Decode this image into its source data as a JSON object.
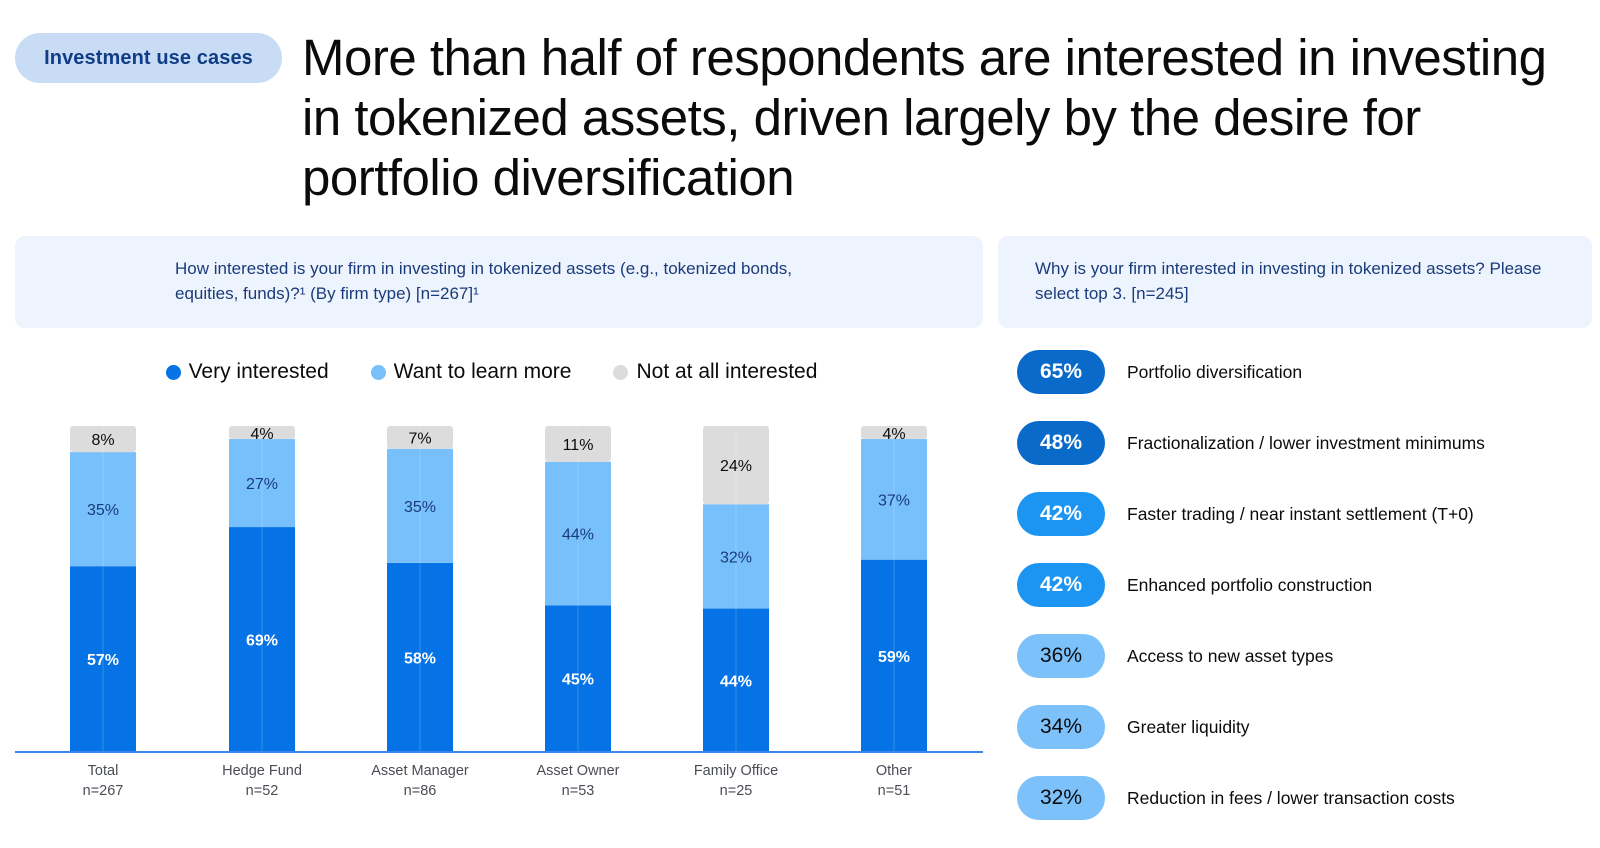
{
  "tag": "Investment use cases",
  "headline": "More than half of respondents are interested in investing in tokenized assets, driven largely by the desire for portfolio diversification",
  "left_panel": {
    "question": "How interested is your firm in investing in tokenized assets (e.g., tokenized bonds, equities, funds)?¹ (By firm type) [n=267]¹"
  },
  "right_panel": {
    "question": "Why is your firm interested in investing in tokenized assets? Please select top 3. [n=245]",
    "reasons": [
      {
        "value": "65%",
        "label": "Portfolio diversification",
        "pill_color": "#0a6ac9",
        "text_color": "#ffffff"
      },
      {
        "value": "48%",
        "label": "Fractionalization / lower investment minimums",
        "pill_color": "#0a6ac9",
        "text_color": "#ffffff"
      },
      {
        "value": "42%",
        "label": "Faster trading / near instant settlement (T+0)",
        "pill_color": "#1c95f2",
        "text_color": "#ffffff"
      },
      {
        "value": "42%",
        "label": "Enhanced portfolio construction",
        "pill_color": "#1c95f2",
        "text_color": "#ffffff"
      },
      {
        "value": "36%",
        "label": "Access to new asset types",
        "pill_color": "#7cc1fa",
        "text_color": "#0a0b0d"
      },
      {
        "value": "34%",
        "label": "Greater liquidity",
        "pill_color": "#7cc1fa",
        "text_color": "#0a0b0d"
      },
      {
        "value": "32%",
        "label": "Reduction in fees / lower transaction costs",
        "pill_color": "#7cc1fa",
        "text_color": "#0a0b0d"
      }
    ]
  },
  "colors": {
    "very_interested": "#0573e5",
    "want_to_learn": "#78c0fb",
    "not_interested": "#dcdcdc",
    "axis": "#3d86f0"
  },
  "chart_data": {
    "type": "bar",
    "stacked": true,
    "title": "How interested is your firm in investing in tokenized assets (e.g., tokenized bonds, equities, funds)?¹ (By firm type) [n=267]¹",
    "xlabel": "",
    "ylabel": "",
    "ylim": [
      0,
      100
    ],
    "grid": false,
    "legend_position": "top-center",
    "categories": [
      "Total",
      "Hedge Fund",
      "Asset Manager",
      "Asset Owner",
      "Family Office",
      "Other"
    ],
    "category_sublabels": [
      "n=267",
      "n=52",
      "n=86",
      "n=53",
      "n=25",
      "n=51"
    ],
    "series": [
      {
        "name": "Very interested",
        "values": [
          57,
          69,
          58,
          45,
          44,
          59
        ]
      },
      {
        "name": "Want to learn more",
        "values": [
          35,
          27,
          35,
          44,
          32,
          37
        ]
      },
      {
        "name": "Not at all interested",
        "values": [
          8,
          4,
          7,
          11,
          24,
          4
        ]
      }
    ]
  }
}
